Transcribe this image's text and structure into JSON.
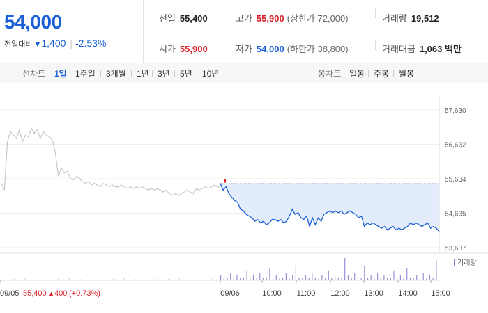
{
  "quote": {
    "price": "54,000",
    "change_label": "전일대비",
    "change_arrow": "▼",
    "change_amount": "1,400",
    "change_percent": "-2.53%",
    "prev_close_label": "전일",
    "prev_close": "55,400",
    "high_label": "고가",
    "high": "55,900",
    "upper_limit": "(상한가 72,000)",
    "volume_label": "거래량",
    "volume": "19,512",
    "open_label": "시가",
    "open": "55,900",
    "low_label": "저가",
    "low": "54,000",
    "lower_limit": "(하한가 38,800)",
    "amount_label": "거래대금",
    "amount": "1,063 백만"
  },
  "tabs": {
    "line_head": "선차트",
    "line_items": [
      "1일",
      "1주일",
      "3개월",
      "1년",
      "3년",
      "5년",
      "10년"
    ],
    "line_active": "1일",
    "candle_head": "봉차트",
    "candle_items": [
      "일봉",
      "주봉",
      "월봉"
    ]
  },
  "colors": {
    "down": "#1a5fd6",
    "up": "#d8222a",
    "prev_day": "#c8c8c8",
    "fill": "#e3ecfa"
  },
  "chart_data": {
    "type": "line",
    "y_ticks": [
      "57,630",
      "56,632",
      "55,634",
      "54,635",
      "53,637"
    ],
    "ylim": [
      53637,
      57630
    ],
    "x_labels": [
      "09/05",
      "09/06",
      "10:00",
      "11:00",
      "12:00",
      "13:00",
      "14:00",
      "15:00"
    ],
    "prev_day_summary": {
      "date": "09/05",
      "close": "55,400",
      "arrow": "▲",
      "change": "400",
      "change_pct": "(+0.73%)"
    },
    "volume_legend": "거래량",
    "series": [
      {
        "values": [
          55500,
          55300,
          56700,
          57000,
          56900,
          56800,
          57050,
          56700,
          56900,
          56850,
          57100,
          56950,
          57050,
          56800,
          57000,
          56900,
          56850,
          56750,
          56400,
          55700,
          55950,
          55800,
          55850,
          55650,
          55600,
          55700,
          55650,
          55550,
          55500,
          55550,
          55450,
          55500,
          55450,
          55400,
          55500,
          55450,
          55400,
          55450,
          55400,
          55400,
          55450,
          55400,
          55350,
          55400,
          55350,
          55400,
          55350,
          55400,
          55350,
          55300,
          55350,
          55300,
          55350,
          55300,
          55250,
          55300,
          55200,
          55150,
          55200,
          55150,
          55200,
          55250,
          55300,
          55250,
          55200,
          55350,
          55300,
          55350,
          55400,
          55350,
          55400,
          55450,
          55400,
          55400
        ]
      },
      {
        "values": [
          55500,
          55300,
          55400,
          55200,
          55100,
          55000,
          54950,
          54750,
          54700,
          54600,
          54550,
          54500,
          54400,
          54450,
          54350,
          54400,
          54300,
          54350,
          54450,
          54450,
          54400,
          54450,
          54350,
          54400,
          54550,
          54750,
          54600,
          54650,
          54500,
          54450,
          54550,
          54250,
          54500,
          54300,
          54500,
          54400,
          54600,
          54650,
          54700,
          54650,
          54700,
          54650,
          54700,
          54600,
          54650,
          54700,
          54650,
          54600,
          54500,
          54550,
          54250,
          54350,
          54300,
          54350,
          54300,
          54250,
          54200,
          54250,
          54150,
          54200,
          54250,
          54150,
          54200,
          54150,
          54200,
          54250,
          54350,
          54300,
          54350,
          54300,
          54250,
          54300,
          54350,
          54200,
          54250,
          54200,
          54100
        ]
      }
    ],
    "volume_bars": [
      2,
      1,
      1,
      3,
      1,
      2,
      1,
      1,
      4,
      1,
      2,
      1,
      3,
      1,
      1,
      5,
      1,
      2,
      1,
      1,
      3,
      1,
      2,
      6,
      1,
      1,
      2,
      1,
      3,
      1,
      1,
      2,
      1,
      4,
      1,
      2,
      1,
      1,
      9,
      2,
      1,
      3,
      1,
      1,
      6,
      1,
      2,
      1,
      3,
      1,
      2,
      1,
      1,
      4,
      1,
      2,
      1,
      5,
      1,
      1,
      2,
      1,
      3,
      1,
      2,
      1,
      8
    ]
  }
}
